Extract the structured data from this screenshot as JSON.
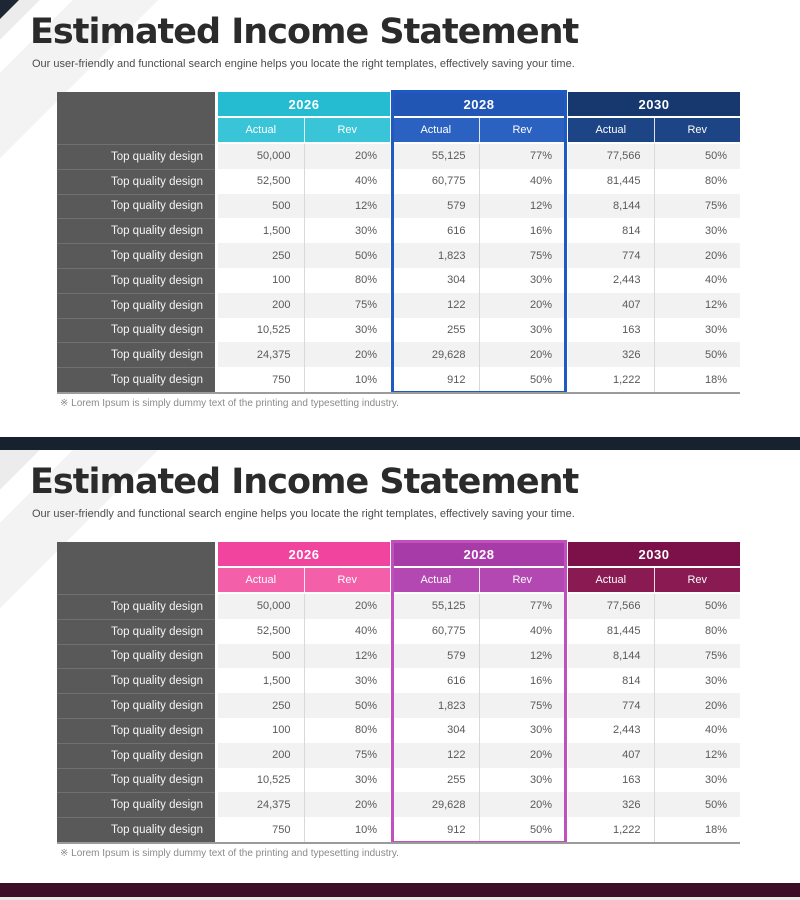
{
  "slides": [
    {
      "title": "Estimated Income Statement",
      "subtitle": "Our user-friendly and functional search engine helps you locate the right templates, effectively saving your time.",
      "footnote": "※ Lorem Ipsum is simply dummy text of the printing and typesetting industry.",
      "theme": {
        "y1m": "#25bcd2",
        "y1s": "#3ac4d8",
        "y2m": "#2156b4",
        "y2s": "#2b62c1",
        "y2b": "#1d5bc2",
        "y3m": "#17386f",
        "y3s": "#1d4484",
        "bar": "#16222f"
      }
    },
    {
      "title": "Estimated Income Statement",
      "subtitle": "Our user-friendly and functional search engine helps you locate the right templates, effectively saving your time.",
      "footnote": "※ Lorem Ipsum is simply dummy text of the printing and typesetting industry.",
      "theme": {
        "y1m": "#f1449e",
        "y1s": "#f35fa9",
        "y2m": "#a73ba7",
        "y2s": "#b348b3",
        "y2b": "#c14fbd",
        "y3m": "#7c1048",
        "y3s": "#8a1a52",
        "bar": "#3d0d27"
      }
    }
  ],
  "table": {
    "groups": [
      {
        "year": "2026",
        "cols": [
          "Actual",
          "Rev"
        ]
      },
      {
        "year": "2028",
        "cols": [
          "Actual",
          "Rev"
        ],
        "highlight": true
      },
      {
        "year": "2030",
        "cols": [
          "Actual",
          "Rev"
        ]
      }
    ],
    "rows": [
      {
        "label": "Top quality design",
        "values": [
          "50,000",
          "20%",
          "55,125",
          "77%",
          "77,566",
          "50%"
        ]
      },
      {
        "label": "Top quality design",
        "values": [
          "52,500",
          "40%",
          "60,775",
          "40%",
          "81,445",
          "80%"
        ]
      },
      {
        "label": "Top quality design",
        "values": [
          "500",
          "12%",
          "579",
          "12%",
          "8,144",
          "75%"
        ]
      },
      {
        "label": "Top quality design",
        "values": [
          "1,500",
          "30%",
          "616",
          "16%",
          "814",
          "30%"
        ]
      },
      {
        "label": "Top quality design",
        "values": [
          "250",
          "50%",
          "1,823",
          "75%",
          "774",
          "20%"
        ]
      },
      {
        "label": "Top quality design",
        "values": [
          "100",
          "80%",
          "304",
          "30%",
          "2,443",
          "40%"
        ]
      },
      {
        "label": "Top quality design",
        "values": [
          "200",
          "75%",
          "122",
          "20%",
          "407",
          "12%"
        ]
      },
      {
        "label": "Top quality design",
        "values": [
          "10,525",
          "30%",
          "255",
          "30%",
          "163",
          "30%"
        ]
      },
      {
        "label": "Top quality design",
        "values": [
          "24,375",
          "20%",
          "29,628",
          "20%",
          "326",
          "50%"
        ]
      },
      {
        "label": "Top quality design",
        "values": [
          "750",
          "10%",
          "912",
          "50%",
          "1,222",
          "18%"
        ]
      }
    ]
  }
}
